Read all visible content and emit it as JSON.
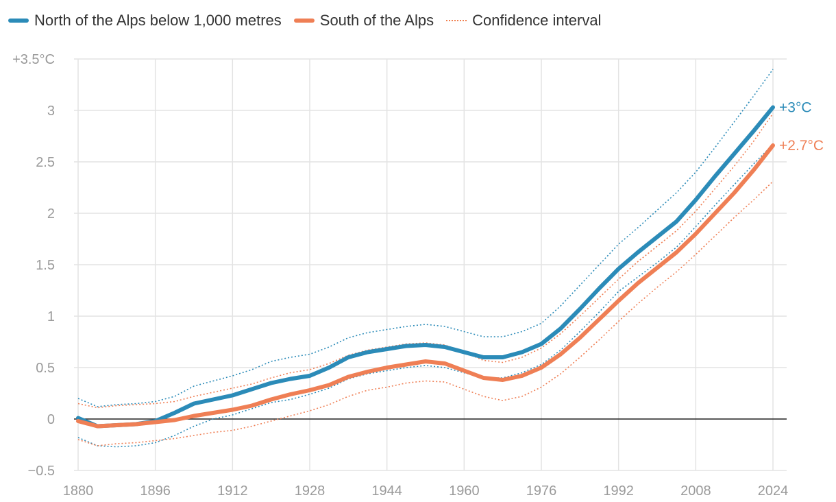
{
  "legend": {
    "north": "North of the Alps below 1,000 metres",
    "south": "South of the Alps",
    "ci": "Confidence interval"
  },
  "colors": {
    "north": "#2b8bb8",
    "south": "#ef7f55",
    "grid": "#e3e3e3",
    "zero": "#222222",
    "tick": "#9a9a9a"
  },
  "chart_data": {
    "type": "line",
    "xlim": [
      1880,
      2024
    ],
    "ylim": [
      -0.5,
      3.5
    ],
    "x_ticks": [
      1880,
      1896,
      1912,
      1928,
      1944,
      1960,
      1976,
      1992,
      2008,
      2024
    ],
    "y_ticks": [
      -0.5,
      0,
      0.5,
      1,
      1.5,
      2,
      2.5,
      3,
      3.5
    ],
    "y_tick_labels": [
      "−0.5",
      "0",
      "0.5",
      "1",
      "1.5",
      "2",
      "2.5",
      "3",
      "+3.5°C"
    ],
    "grid": true,
    "series": [
      {
        "name": "North of the Alps below 1,000 metres",
        "end_label": "+3°C",
        "x": [
          1880,
          1884,
          1888,
          1892,
          1896,
          1900,
          1904,
          1908,
          1912,
          1916,
          1920,
          1924,
          1928,
          1932,
          1936,
          1940,
          1944,
          1948,
          1952,
          1956,
          1960,
          1964,
          1968,
          1972,
          1976,
          1980,
          1984,
          1988,
          1992,
          1996,
          2000,
          2004,
          2008,
          2012,
          2016,
          2020,
          2024
        ],
        "y": [
          0.01,
          -0.07,
          -0.06,
          -0.05,
          -0.02,
          0.06,
          0.15,
          0.19,
          0.23,
          0.29,
          0.35,
          0.39,
          0.42,
          0.5,
          0.6,
          0.65,
          0.68,
          0.71,
          0.72,
          0.7,
          0.65,
          0.6,
          0.6,
          0.65,
          0.73,
          0.88,
          1.07,
          1.27,
          1.46,
          1.62,
          1.77,
          1.92,
          2.13,
          2.36,
          2.58,
          2.8,
          3.03
        ],
        "upper": [
          0.2,
          0.12,
          0.14,
          0.15,
          0.17,
          0.22,
          0.32,
          0.37,
          0.42,
          0.48,
          0.56,
          0.6,
          0.63,
          0.7,
          0.79,
          0.84,
          0.87,
          0.9,
          0.92,
          0.9,
          0.85,
          0.8,
          0.8,
          0.85,
          0.93,
          1.1,
          1.3,
          1.5,
          1.7,
          1.86,
          2.03,
          2.2,
          2.4,
          2.64,
          2.89,
          3.14,
          3.4
        ],
        "lower": [
          -0.18,
          -0.26,
          -0.27,
          -0.26,
          -0.23,
          -0.16,
          -0.07,
          0.0,
          0.04,
          0.1,
          0.16,
          0.19,
          0.24,
          0.3,
          0.39,
          0.44,
          0.47,
          0.5,
          0.52,
          0.5,
          0.45,
          0.4,
          0.4,
          0.45,
          0.53,
          0.67,
          0.85,
          1.04,
          1.24,
          1.38,
          1.52,
          1.67,
          1.87,
          2.08,
          2.28,
          2.48,
          2.67
        ]
      },
      {
        "name": "South of the Alps",
        "end_label": "+2.7°C",
        "x": [
          1880,
          1884,
          1888,
          1892,
          1896,
          1900,
          1904,
          1908,
          1912,
          1916,
          1920,
          1924,
          1928,
          1932,
          1936,
          1940,
          1944,
          1948,
          1952,
          1956,
          1960,
          1964,
          1968,
          1972,
          1976,
          1980,
          1984,
          1988,
          1992,
          1996,
          2000,
          2004,
          2008,
          2012,
          2016,
          2020,
          2024
        ],
        "y": [
          -0.02,
          -0.07,
          -0.06,
          -0.05,
          -0.03,
          -0.01,
          0.03,
          0.06,
          0.09,
          0.13,
          0.19,
          0.24,
          0.28,
          0.33,
          0.41,
          0.46,
          0.5,
          0.53,
          0.56,
          0.54,
          0.47,
          0.4,
          0.38,
          0.42,
          0.5,
          0.63,
          0.79,
          0.97,
          1.15,
          1.32,
          1.47,
          1.62,
          1.8,
          2.0,
          2.2,
          2.42,
          2.66
        ],
        "upper": [
          0.15,
          0.11,
          0.13,
          0.14,
          0.15,
          0.17,
          0.22,
          0.26,
          0.3,
          0.34,
          0.4,
          0.45,
          0.48,
          0.54,
          0.62,
          0.67,
          0.7,
          0.73,
          0.74,
          0.72,
          0.65,
          0.57,
          0.55,
          0.6,
          0.69,
          0.83,
          1.0,
          1.18,
          1.36,
          1.53,
          1.68,
          1.83,
          2.02,
          2.24,
          2.46,
          2.7,
          2.97
        ],
        "lower": [
          -0.2,
          -0.26,
          -0.24,
          -0.23,
          -0.21,
          -0.19,
          -0.16,
          -0.13,
          -0.11,
          -0.07,
          -0.02,
          0.03,
          0.08,
          0.14,
          0.22,
          0.28,
          0.31,
          0.35,
          0.37,
          0.36,
          0.29,
          0.22,
          0.18,
          0.22,
          0.31,
          0.44,
          0.6,
          0.77,
          0.95,
          1.12,
          1.28,
          1.43,
          1.6,
          1.78,
          1.96,
          2.13,
          2.31
        ]
      }
    ]
  }
}
